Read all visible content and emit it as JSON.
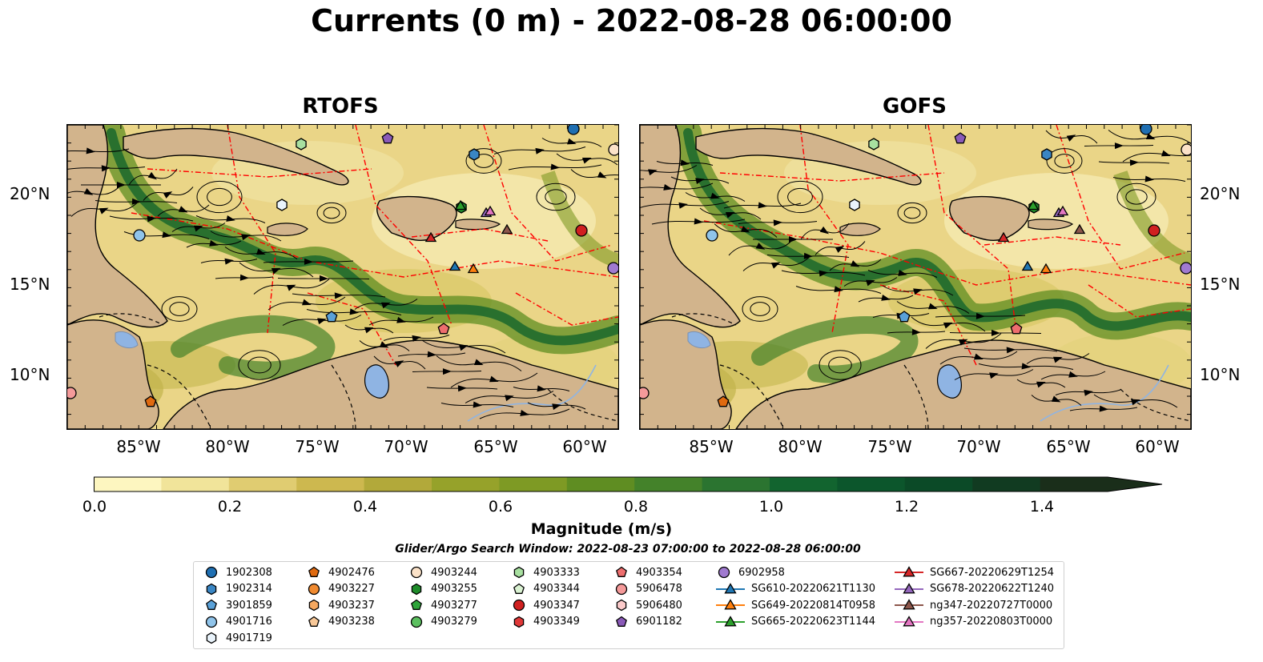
{
  "title": "Currents (0 m) - 2022-08-28 06:00:00",
  "panels": [
    {
      "title": "RTOFS"
    },
    {
      "title": "GOFS"
    }
  ],
  "lat_ticks": [
    "20°N",
    "15°N",
    "10°N"
  ],
  "lon_ticks": [
    "85°W",
    "80°W",
    "75°W",
    "70°W",
    "65°W",
    "60°W"
  ],
  "colorbar": {
    "label": "Magnitude (m/s)",
    "ticks": [
      "0.0",
      "0.2",
      "0.4",
      "0.6",
      "0.8",
      "1.0",
      "1.2",
      "1.4"
    ],
    "colors": [
      "#fdf6c0",
      "#f1e49a",
      "#e0cc71",
      "#cdb84f",
      "#b2a93a",
      "#96a22a",
      "#7e9a24",
      "#5f8d22",
      "#44822a",
      "#2b7430",
      "#12642f",
      "#0c562c",
      "#0b4a27",
      "#113b21",
      "#1a2e1a"
    ]
  },
  "search_window": "Glider/Argo Search Window: 2022-08-23 07:00:00 to 2022-08-28 06:00:00",
  "legend": [
    {
      "label": "1902308",
      "marker": "circle",
      "color": "#1f6fb2"
    },
    {
      "label": "1902314",
      "marker": "hexagon",
      "color": "#3a86c4"
    },
    {
      "label": "3901859",
      "marker": "pentagon",
      "color": "#5aa1d8"
    },
    {
      "label": "4901716",
      "marker": "circle",
      "color": "#90c4ea"
    },
    {
      "label": "4901719",
      "marker": "hexagon",
      "color": "#e9f3fb"
    },
    {
      "label": "4902476",
      "marker": "pentagon",
      "color": "#e06a10"
    },
    {
      "label": "4903227",
      "marker": "circle",
      "color": "#f08a30"
    },
    {
      "label": "4903237",
      "marker": "hexagon",
      "color": "#f5a860"
    },
    {
      "label": "4903238",
      "marker": "pentagon",
      "color": "#f8c898"
    },
    {
      "label": "4903244",
      "marker": "circle",
      "color": "#fbe2c8"
    },
    {
      "label": "4903255",
      "marker": "hexagon",
      "color": "#1e8c2a"
    },
    {
      "label": "4903277",
      "marker": "pentagon",
      "color": "#2ea43a"
    },
    {
      "label": "4903279",
      "marker": "circle",
      "color": "#5cc060"
    },
    {
      "label": "4903333",
      "marker": "hexagon",
      "color": "#a8e0a0"
    },
    {
      "label": "4903344",
      "marker": "pentagon",
      "color": "#daf2d2"
    },
    {
      "label": "4903347",
      "marker": "circle",
      "color": "#d02020"
    },
    {
      "label": "4903349",
      "marker": "hexagon",
      "color": "#e03838"
    },
    {
      "label": "4903354",
      "marker": "pentagon",
      "color": "#ee6e6e"
    },
    {
      "label": "5906478",
      "marker": "circle",
      "color": "#f59a9a"
    },
    {
      "label": "5906480",
      "marker": "hexagon",
      "color": "#fbcaca"
    },
    {
      "label": "6901182",
      "marker": "pentagon",
      "color": "#8a5ab8"
    },
    {
      "label": "6902958",
      "marker": "circle",
      "color": "#a07ad0"
    },
    {
      "label": "SG610-20220621T1130",
      "marker": "triangle-line",
      "color": "#1f77b4"
    },
    {
      "label": "SG649-20220814T0958",
      "marker": "triangle-line",
      "color": "#ff7f0e"
    },
    {
      "label": "SG665-20220623T1144",
      "marker": "triangle-line",
      "color": "#2ca02c"
    },
    {
      "label": "SG667-20220629T1254",
      "marker": "triangle-line",
      "color": "#d62728"
    },
    {
      "label": "SG678-20220622T1240",
      "marker": "triangle-line",
      "color": "#9467bd"
    },
    {
      "label": "ng347-20220727T0000",
      "marker": "triangle-line",
      "color": "#8c564b"
    },
    {
      "label": "ng357-20220803T0000",
      "marker": "triangle-line",
      "color": "#e377c2"
    }
  ],
  "colors": {
    "land": "#d2b48c",
    "eez": "#ff0000",
    "lake": "#8fb4e3"
  }
}
